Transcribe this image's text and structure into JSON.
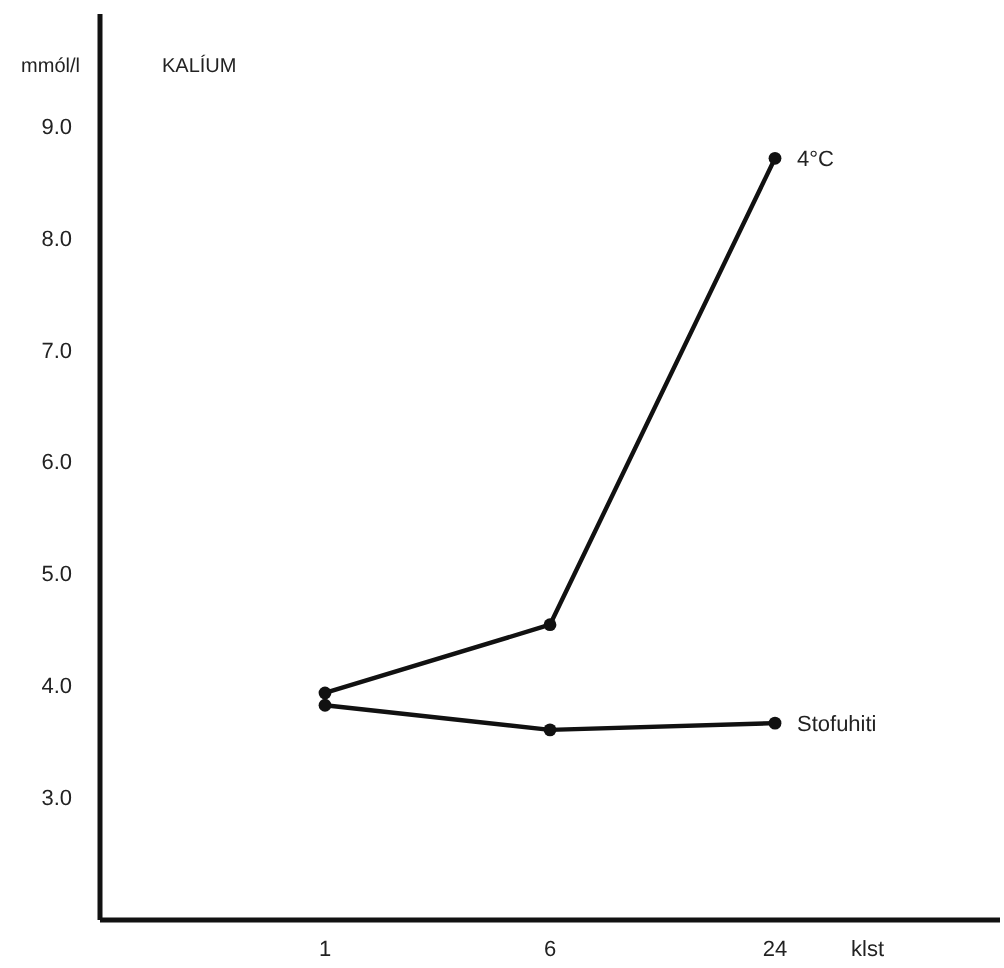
{
  "chart_data": {
    "type": "line",
    "title": "KALÍUM",
    "ylabel": "mmól/l",
    "xlabel": "klst",
    "categories": [
      "1",
      "6",
      "24"
    ],
    "series": [
      {
        "name": "4°C",
        "color": "#111111",
        "values": [
          3.93,
          4.54,
          8.71
        ]
      },
      {
        "name": "Stofuhiti",
        "color": "#111111",
        "values": [
          3.82,
          3.6,
          3.66
        ]
      }
    ],
    "ylim": [
      1.9,
      10
    ],
    "yticks": [
      {
        "value": 3,
        "label": "3.0"
      },
      {
        "value": 4,
        "label": "4.0"
      },
      {
        "value": 5,
        "label": "5.0"
      },
      {
        "value": 6,
        "label": "6.0"
      },
      {
        "value": 7,
        "label": "7.0"
      },
      {
        "value": 8,
        "label": "8.0"
      },
      {
        "value": 9,
        "label": "9.0"
      }
    ],
    "marker": "circle",
    "line_style": "solid",
    "grid": false
  }
}
